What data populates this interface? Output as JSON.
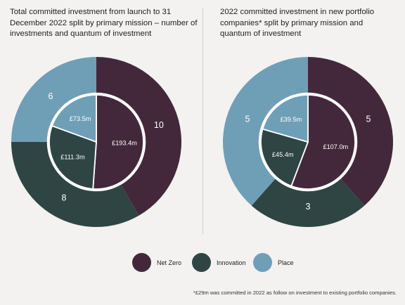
{
  "colors": {
    "net_zero": "#43283b",
    "innovation": "#2e4543",
    "place": "#6f9fb6",
    "background": "#f3f2f1",
    "text_on_dark": "#ffffff"
  },
  "legend": [
    {
      "key": "net_zero",
      "label": "Net Zero"
    },
    {
      "key": "innovation",
      "label": "Innovation"
    },
    {
      "key": "place",
      "label": "Place"
    }
  ],
  "footnote": "*£29m was committed in 2022 as follow on investment to existing portfolio companies.",
  "chart_data": [
    {
      "type": "pie",
      "title": "Total committed investment from launch to 31 December 2022 split by primary mission – number of investments and quantum of investment",
      "categories": [
        "Net Zero",
        "Innovation",
        "Place"
      ],
      "series": [
        {
          "name": "",
          "values": [
            10,
            8,
            6
          ],
          "labels": [
            "10",
            "8",
            "6"
          ]
        },
        {
          "name": "",
          "values": [
            193.4,
            111.3,
            73.5
          ],
          "labels": [
            "£193.4m",
            "£111.3m",
            "£73.5m"
          ]
        }
      ]
    },
    {
      "type": "pie",
      "title": "2022 committed investment in new portfolio companies* split by primary mission and quantum of investment",
      "categories": [
        "Net Zero",
        "Innovation",
        "Place"
      ],
      "series": [
        {
          "name": "",
          "values": [
            5,
            3,
            5
          ],
          "labels": [
            "5",
            "3",
            "5"
          ]
        },
        {
          "name": "",
          "values": [
            107.0,
            45.4,
            39.5
          ],
          "labels": [
            "£107.0m",
            "£45.4m",
            "£39.5m"
          ]
        }
      ]
    }
  ]
}
